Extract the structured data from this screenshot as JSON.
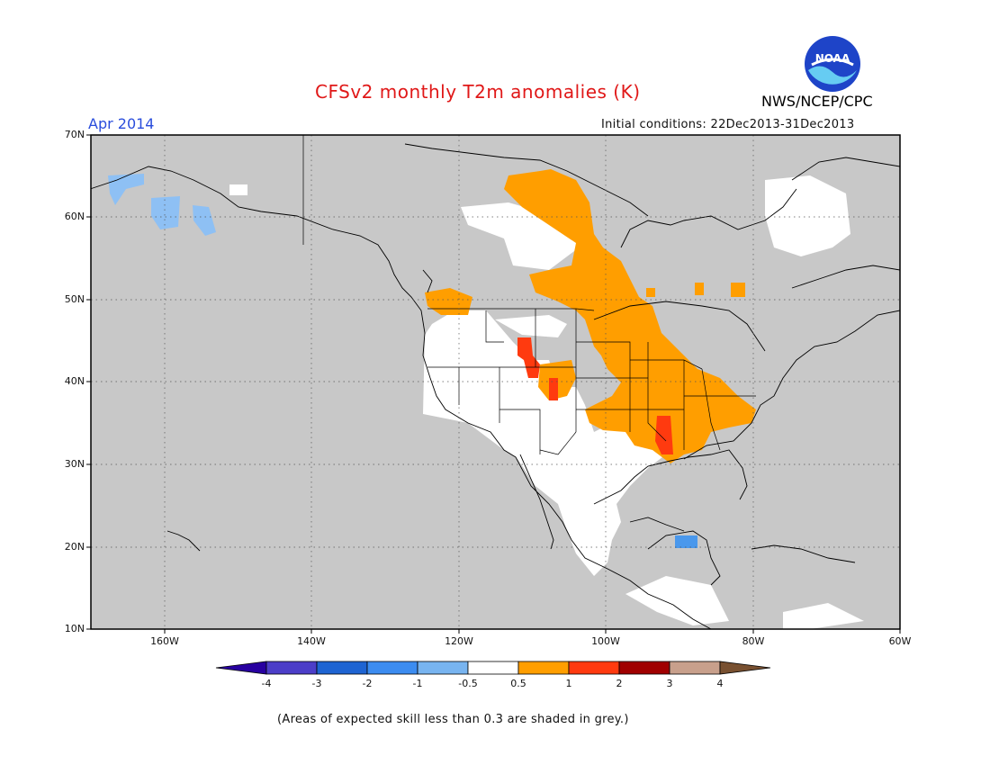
{
  "header": {
    "title": "CFSv2 monthly T2m anomalies (K)",
    "period": "Apr 2014",
    "agency": "NWS/NCEP/CPC",
    "logo_text": "NOAA",
    "initial_conditions": "Initial conditions: 22Dec2013-31Dec2013"
  },
  "map": {
    "lat_labels": [
      "70N",
      "60N",
      "50N",
      "40N",
      "30N",
      "20N",
      "10N"
    ],
    "lon_labels": [
      "160W",
      "140W",
      "120W",
      "100W",
      "80W",
      "60W"
    ],
    "lat_range": [
      10,
      70
    ],
    "lon_range": [
      -170,
      -60
    ],
    "colors": {
      "ocean_low_skill": "#c8c8c8",
      "near_normal": "#ffffff",
      "warm_0.5_1": "#ff9e00",
      "warm_1_2": "#ff3a0f",
      "cool_-1_-0.5": "#8ec0f4",
      "cool_-2_-1": "#4a98ec"
    }
  },
  "legend": {
    "labels": [
      "-4",
      "-3",
      "-2",
      "-1",
      "-0.5",
      "0.5",
      "1",
      "2",
      "3",
      "4"
    ],
    "colors": [
      "#2800a0",
      "#4c3ec8",
      "#1e64d2",
      "#3c8cf0",
      "#78b4f0",
      "#ffffff",
      "#ff9e00",
      "#ff3a0f",
      "#a00000",
      "#c8a08c",
      "#785030"
    ]
  },
  "footer": {
    "note": "(Areas of expected skill less than 0.3 are shaded in grey.)"
  }
}
